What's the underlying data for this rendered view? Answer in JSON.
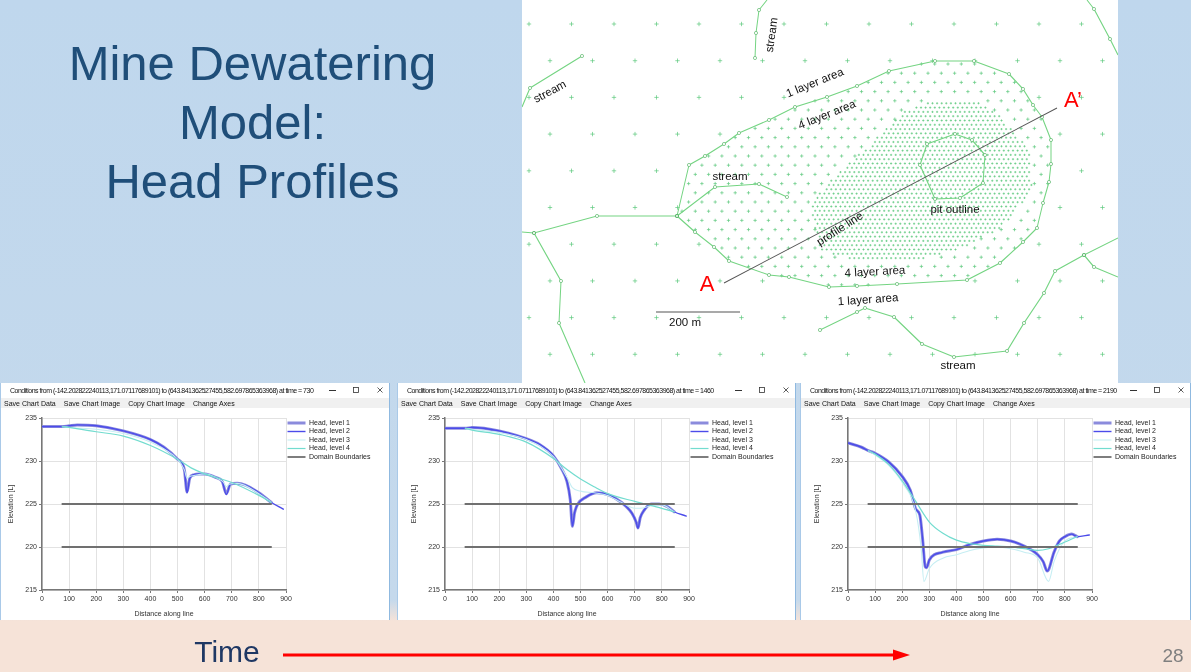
{
  "chart_data": [
    {
      "type": "other",
      "title": "Mine Dewatering Model:",
      "subtitle": "Head Profiles",
      "annotations": [
        "stream",
        "stream",
        "1 layer area",
        "A’",
        "4 layer area",
        "stream",
        "pit outline",
        "profile line",
        "A",
        "4 layer area",
        "1 layer area",
        "200 m",
        "stream",
        "Time",
        "28"
      ]
    },
    {
      "type": "line",
      "title": "Conditions from (-142.202822240113,171.07117689101) to (643.841362527455,582.697865363968) at time = 730",
      "annotations": [
        "Save Chart Data",
        "Save Chart Image",
        "Copy Chart Image",
        "Change Axes"
      ],
      "xlabel": "Distance along line",
      "ylabel": "Elevation [L]",
      "xlim": [
        0,
        900
      ],
      "xticks": [
        0,
        100,
        200,
        300,
        400,
        500,
        600,
        700,
        800,
        900
      ],
      "ylim": [
        215,
        235
      ],
      "yticks": [
        215,
        220,
        225,
        230,
        235
      ],
      "grid": true,
      "legend": "top right",
      "series": [
        {
          "name": "Head, level 1",
          "color": "#8b8bdc",
          "x": [
            0,
            75,
            100,
            130,
            200,
            300,
            400,
            450,
            500,
            525,
            535,
            545,
            560,
            580,
            600,
            640,
            665,
            680,
            695,
            720,
            750,
            800,
            845
          ],
          "values": [
            234,
            234,
            234.1,
            234.2,
            234.1,
            233.5,
            232.5,
            231.6,
            230.2,
            229,
            226.4,
            228,
            228.4,
            228.5,
            228.5,
            228.1,
            227.6,
            226.2,
            227.3,
            227.4,
            227.2,
            226.3,
            225.2
          ]
        },
        {
          "name": "Head, level 2",
          "color": "#4b4bea",
          "x": [
            0,
            75,
            100,
            130,
            200,
            300,
            400,
            450,
            500,
            525,
            535,
            545,
            560,
            580,
            600,
            640,
            665,
            680,
            695,
            720,
            750,
            800,
            845,
            890
          ],
          "values": [
            234,
            234,
            234.1,
            234.2,
            234.1,
            233.5,
            232.5,
            231.6,
            230.2,
            229,
            226.3,
            228,
            228.4,
            228.5,
            228.5,
            228.1,
            227.6,
            226.1,
            227.3,
            227.4,
            227.2,
            226.3,
            225.2,
            224.4
          ]
        },
        {
          "name": "Head, level 3",
          "color": "#c6eef3",
          "x": [
            75,
            100,
            200,
            300,
            400,
            500,
            525,
            535,
            545,
            560,
            600,
            640,
            670,
            680,
            690,
            720,
            800,
            845
          ],
          "values": [
            234,
            233.9,
            233.7,
            233.2,
            232.2,
            230.2,
            229,
            228,
            228.2,
            228.3,
            228.5,
            228.1,
            227.5,
            227,
            227.3,
            227.4,
            226.2,
            225.2
          ]
        },
        {
          "name": "Head, level 4",
          "color": "#72dccf",
          "x": [
            75,
            100,
            200,
            300,
            400,
            500,
            550,
            600,
            700,
            800,
            845
          ],
          "values": [
            234,
            233.9,
            233.4,
            232.9,
            231.8,
            230.2,
            229.2,
            228.5,
            227.5,
            226,
            225.2
          ]
        },
        {
          "name": "Domain Boundaries",
          "color": "#707070",
          "x": [
            75,
            845
          ],
          "values": [
            225,
            225
          ]
        },
        {
          "color": "#707070",
          "x": [
            75,
            845
          ],
          "values": [
            220,
            220
          ]
        }
      ]
    },
    {
      "type": "line",
      "title": "Conditions from (-142.202822240113,171.07117689101) to (643.841362527455,582.697865363968) at time = 1460",
      "annotations": [
        "Save Chart Data",
        "Save Chart Image",
        "Copy Chart Image",
        "Change Axes"
      ],
      "xlabel": "Distance along line",
      "ylabel": "Elevation [L]",
      "xlim": [
        0,
        900
      ],
      "xticks": [
        0,
        100,
        200,
        300,
        400,
        500,
        600,
        700,
        800,
        900
      ],
      "ylim": [
        215,
        235
      ],
      "yticks": [
        215,
        220,
        225,
        230,
        235
      ],
      "grid": true,
      "legend": "top right",
      "series": [
        {
          "name": "Head, level 1",
          "color": "#8b8bdc",
          "x": [
            0,
            75,
            100,
            200,
            300,
            350,
            400,
            430,
            450,
            462,
            470,
            478,
            490,
            520,
            560,
            600,
            650,
            690,
            705,
            712,
            720,
            735,
            760,
            790,
            820,
            845
          ],
          "values": [
            233.8,
            233.8,
            233.9,
            233.5,
            232.6,
            231.9,
            230.6,
            229.1,
            227.6,
            225.5,
            222.4,
            224,
            225,
            225.8,
            226.3,
            226.1,
            225.2,
            223.9,
            222.9,
            222.2,
            223.4,
            224.3,
            225,
            225,
            224.7,
            224.1
          ]
        },
        {
          "name": "Head, level 2",
          "color": "#4b4bea",
          "x": [
            0,
            75,
            100,
            200,
            300,
            350,
            400,
            430,
            450,
            462,
            470,
            478,
            490,
            520,
            560,
            600,
            650,
            690,
            705,
            712,
            720,
            735,
            760,
            790,
            820,
            845,
            890
          ],
          "values": [
            233.8,
            233.8,
            233.9,
            233.5,
            232.6,
            231.9,
            230.6,
            229.1,
            227.6,
            225.5,
            222.4,
            224,
            225,
            225.8,
            226.3,
            226.1,
            225.2,
            223.9,
            222.9,
            222.2,
            223.4,
            224.3,
            225,
            225,
            224.7,
            224.1,
            223.6
          ]
        },
        {
          "name": "Head, level 3",
          "color": "#c6eef3",
          "x": [
            75,
            100,
            200,
            300,
            400,
            450,
            470,
            500,
            550,
            600,
            650,
            700,
            720,
            760,
            800,
            845
          ],
          "values": [
            233.8,
            233.7,
            233.3,
            232.5,
            230.5,
            228.1,
            226.9,
            226.5,
            226.3,
            226,
            225.2,
            224.5,
            224.5,
            224.8,
            224.9,
            224.1
          ]
        },
        {
          "name": "Head, level 4",
          "color": "#72dccf",
          "x": [
            75,
            100,
            200,
            300,
            400,
            450,
            500,
            550,
            600,
            700,
            800,
            845
          ],
          "values": [
            233.8,
            233.6,
            233.1,
            232.2,
            230.3,
            229,
            227.9,
            227,
            226.2,
            225.3,
            224.5,
            224.1
          ]
        },
        {
          "name": "Domain Boundaries",
          "color": "#707070",
          "x": [
            75,
            845
          ],
          "values": [
            225,
            225
          ]
        },
        {
          "color": "#707070",
          "x": [
            75,
            845
          ],
          "values": [
            220,
            220
          ]
        }
      ]
    },
    {
      "type": "line",
      "title": "Conditions from (-142.202822240113,171.07117689101) to (643.841362527455,582.697865363968) at time = 2190",
      "annotations": [
        "Save Chart Data",
        "Save Chart Image",
        "Copy Chart Image",
        "Change Axes"
      ],
      "xlabel": "Distance along line",
      "ylabel": "Elevation [L]",
      "xlim": [
        0,
        900
      ],
      "xticks": [
        0,
        100,
        200,
        300,
        400,
        500,
        600,
        700,
        800,
        900
      ],
      "ylim": [
        215,
        235
      ],
      "yticks": [
        215,
        220,
        225,
        230,
        235
      ],
      "grid": true,
      "legend": "top right",
      "series": [
        {
          "name": "Head, level 1",
          "color": "#8b8bdc",
          "x": [
            0,
            50,
            75,
            100,
            150,
            200,
            230,
            250,
            265,
            275,
            285,
            290,
            300,
            350,
            400,
            450,
            500,
            550,
            600,
            650,
            700,
            720,
            735,
            760,
            780,
            800,
            825,
            845
          ],
          "values": [
            232.1,
            231.6,
            231.2,
            230.9,
            229.9,
            228.2,
            226.6,
            224.4,
            223.7,
            221,
            217.7,
            217.6,
            218.5,
            219.4,
            219.7,
            220.3,
            220.7,
            220.9,
            220.7,
            220.1,
            219.1,
            218.3,
            217.2,
            219.4,
            220.7,
            221.2,
            221.5,
            221.2
          ]
        },
        {
          "name": "Head, level 2",
          "color": "#4b4bea",
          "x": [
            0,
            50,
            75,
            100,
            150,
            200,
            230,
            250,
            265,
            275,
            285,
            290,
            300,
            350,
            400,
            450,
            500,
            550,
            600,
            650,
            700,
            720,
            735,
            760,
            780,
            800,
            825,
            845,
            890
          ],
          "values": [
            232.1,
            231.6,
            231.2,
            230.9,
            229.9,
            228.2,
            226.6,
            224.4,
            223.7,
            221,
            217.7,
            217.6,
            218.5,
            219.4,
            219.7,
            220.3,
            220.7,
            220.9,
            220.7,
            220.1,
            219.1,
            218.3,
            217.2,
            219.4,
            220.7,
            221.2,
            221.5,
            221.2,
            221.4
          ]
        },
        {
          "name": "Head, level 3",
          "color": "#c6eef3",
          "x": [
            75,
            100,
            150,
            200,
            250,
            270,
            280,
            300,
            350,
            400,
            450,
            500,
            550,
            600,
            650,
            700,
            740,
            760,
            800,
            845
          ],
          "values": [
            231.2,
            230.7,
            229.5,
            227.5,
            224.1,
            219.8,
            216,
            217.5,
            218.7,
            219.1,
            219.6,
            219.9,
            220,
            219.8,
            219.4,
            218.7,
            216,
            218.3,
            220.7,
            221.2
          ]
        },
        {
          "name": "Head, level 4",
          "color": "#72dccf",
          "x": [
            75,
            100,
            150,
            200,
            250,
            300,
            350,
            400,
            450,
            500,
            550,
            600,
            650,
            700,
            740,
            780,
            845
          ],
          "values": [
            231.2,
            230.8,
            229.6,
            227.7,
            225.3,
            222.9,
            221.6,
            220.8,
            220.4,
            220.2,
            220.1,
            220,
            219.8,
            219.6,
            219.8,
            220.3,
            221.2
          ]
        },
        {
          "name": "Domain Boundaries",
          "color": "#707070",
          "x": [
            75,
            845
          ],
          "values": [
            225,
            225
          ]
        },
        {
          "color": "#707070",
          "x": [
            75,
            845
          ],
          "values": [
            220,
            220
          ]
        }
      ]
    }
  ]
}
